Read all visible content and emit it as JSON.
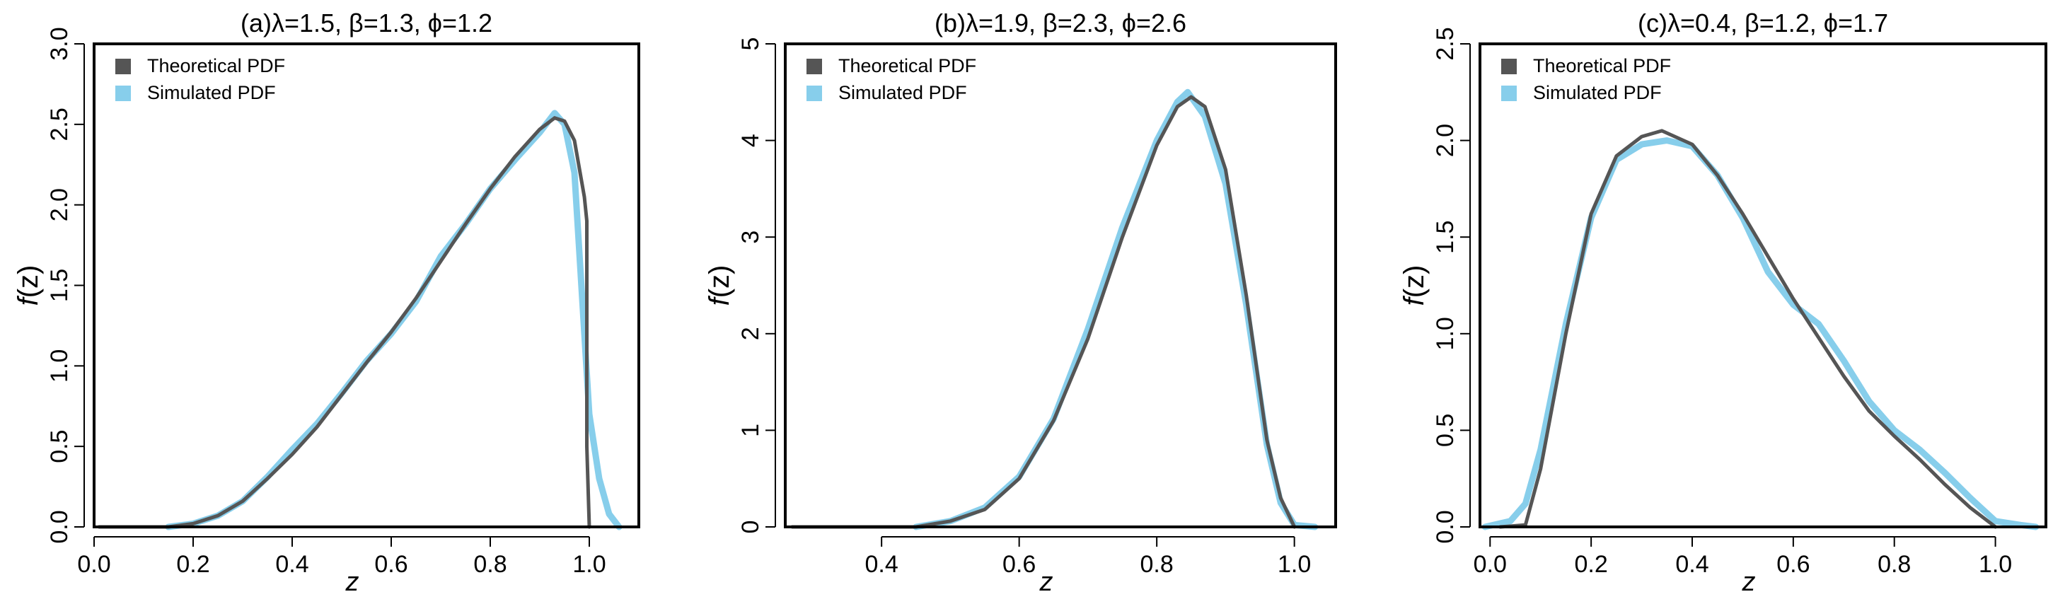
{
  "chart_data": [
    {
      "type": "line",
      "title": "(a)λ=1.5, β=1.3, ϕ=1.2",
      "xlabel": "z",
      "ylabel": "f(z)",
      "xlim": [
        0.0,
        1.1
      ],
      "ylim": [
        0.0,
        3.0
      ],
      "xticks": [
        "0.0",
        "0.2",
        "0.4",
        "0.6",
        "0.8",
        "1.0"
      ],
      "yticks": [
        "0.0",
        "0.5",
        "1.0",
        "1.5",
        "2.0",
        "2.5",
        "3.0"
      ],
      "legend": {
        "position": "top-left",
        "entries": [
          "Theoretical PDF",
          "Simulated PDF"
        ]
      },
      "series": [
        {
          "name": "Theoretical PDF",
          "color": "#555555",
          "x": [
            0.01,
            0.15,
            0.2,
            0.25,
            0.3,
            0.35,
            0.4,
            0.45,
            0.5,
            0.55,
            0.6,
            0.65,
            0.7,
            0.75,
            0.8,
            0.85,
            0.9,
            0.93,
            0.95,
            0.97,
            0.99,
            0.995,
            0.995,
            1.0
          ],
          "y": [
            0.0,
            0.0,
            0.02,
            0.07,
            0.16,
            0.3,
            0.45,
            0.62,
            0.82,
            1.02,
            1.21,
            1.42,
            1.65,
            1.88,
            2.1,
            2.3,
            2.47,
            2.54,
            2.52,
            2.4,
            2.05,
            1.9,
            0.5,
            0.0
          ]
        },
        {
          "name": "Simulated PDF",
          "color": "#87ceeb",
          "x": [
            0.15,
            0.2,
            0.25,
            0.3,
            0.35,
            0.4,
            0.45,
            0.5,
            0.55,
            0.6,
            0.65,
            0.7,
            0.75,
            0.8,
            0.85,
            0.9,
            0.93,
            0.95,
            0.97,
            0.99,
            1.0,
            1.02,
            1.04,
            1.06
          ],
          "y": [
            0.0,
            0.02,
            0.07,
            0.16,
            0.31,
            0.48,
            0.64,
            0.83,
            1.03,
            1.2,
            1.4,
            1.68,
            1.88,
            2.1,
            2.28,
            2.45,
            2.57,
            2.5,
            2.2,
            1.2,
            0.7,
            0.3,
            0.08,
            0.0
          ]
        }
      ]
    },
    {
      "type": "line",
      "title": "(b)λ=1.9, β=2.3, ϕ=2.6",
      "xlabel": "z",
      "ylabel": "f(z)",
      "xlim": [
        0.26,
        1.06
      ],
      "ylim": [
        0.0,
        5.0
      ],
      "xticks": [
        "0.4",
        "0.6",
        "0.8",
        "1.0"
      ],
      "yticks": [
        "0",
        "1",
        "2",
        "3",
        "4",
        "5"
      ],
      "legend": {
        "position": "top-left",
        "entries": [
          "Theoretical PDF",
          "Simulated PDF"
        ]
      },
      "series": [
        {
          "name": "Theoretical PDF",
          "color": "#555555",
          "x": [
            0.27,
            0.45,
            0.5,
            0.55,
            0.6,
            0.65,
            0.7,
            0.75,
            0.8,
            0.83,
            0.85,
            0.87,
            0.9,
            0.93,
            0.96,
            0.98,
            1.0
          ],
          "y": [
            0.0,
            0.0,
            0.06,
            0.18,
            0.5,
            1.1,
            1.95,
            3.0,
            3.95,
            4.35,
            4.45,
            4.35,
            3.7,
            2.4,
            0.9,
            0.3,
            0.0
          ]
        },
        {
          "name": "Simulated PDF",
          "color": "#87ceeb",
          "x": [
            0.45,
            0.5,
            0.55,
            0.6,
            0.65,
            0.7,
            0.75,
            0.8,
            0.83,
            0.845,
            0.87,
            0.9,
            0.93,
            0.96,
            0.98,
            1.0,
            1.03
          ],
          "y": [
            0.0,
            0.06,
            0.2,
            0.52,
            1.12,
            2.05,
            3.1,
            4.0,
            4.4,
            4.5,
            4.25,
            3.55,
            2.3,
            0.85,
            0.25,
            0.02,
            0.0
          ]
        }
      ]
    },
    {
      "type": "line",
      "title": "(c)λ=0.4, β=1.2, ϕ=1.7",
      "xlabel": "z",
      "ylabel": "f(z)",
      "xlim": [
        -0.02,
        1.1
      ],
      "ylim": [
        0.0,
        2.5
      ],
      "xticks": [
        "0.0",
        "0.2",
        "0.4",
        "0.6",
        "0.8",
        "1.0"
      ],
      "yticks": [
        "0.0",
        "0.5",
        "1.0",
        "1.5",
        "2.0",
        "2.5"
      ],
      "legend": {
        "position": "top-left",
        "entries": [
          "Theoretical PDF",
          "Simulated PDF"
        ]
      },
      "series": [
        {
          "name": "Theoretical PDF",
          "color": "#555555",
          "x": [
            0.02,
            0.07,
            0.1,
            0.15,
            0.2,
            0.25,
            0.3,
            0.34,
            0.4,
            0.45,
            0.5,
            0.55,
            0.6,
            0.65,
            0.7,
            0.75,
            0.8,
            0.85,
            0.9,
            0.95,
            1.0
          ],
          "y": [
            0.0,
            0.01,
            0.3,
            1.0,
            1.62,
            1.92,
            2.02,
            2.05,
            1.98,
            1.82,
            1.62,
            1.4,
            1.18,
            0.98,
            0.78,
            0.6,
            0.47,
            0.35,
            0.22,
            0.1,
            0.0
          ]
        },
        {
          "name": "Simulated PDF",
          "color": "#87ceeb",
          "x": [
            -0.01,
            0.04,
            0.07,
            0.1,
            0.15,
            0.2,
            0.25,
            0.3,
            0.35,
            0.4,
            0.45,
            0.5,
            0.55,
            0.6,
            0.65,
            0.7,
            0.75,
            0.8,
            0.85,
            0.9,
            0.95,
            1.0,
            1.05,
            1.08
          ],
          "y": [
            0.0,
            0.03,
            0.12,
            0.4,
            1.05,
            1.6,
            1.9,
            1.98,
            2.0,
            1.97,
            1.82,
            1.6,
            1.32,
            1.15,
            1.05,
            0.86,
            0.65,
            0.5,
            0.4,
            0.28,
            0.15,
            0.03,
            0.01,
            0.0
          ]
        }
      ]
    }
  ]
}
